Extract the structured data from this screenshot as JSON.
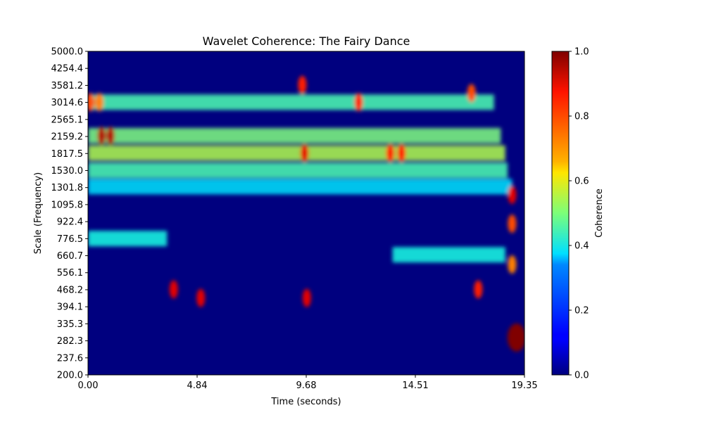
{
  "chart_data": {
    "type": "heatmap",
    "title": "Wavelet Coherence: The Fairy Dance",
    "xlabel": "Time (seconds)",
    "ylabel": "Scale (Frequency)",
    "xlim": [
      0.0,
      19.35
    ],
    "x_ticks": [
      "0.00",
      "4.84",
      "9.68",
      "14.51",
      "19.35"
    ],
    "y_ticks": [
      "200.0",
      "237.6",
      "282.3",
      "335.3",
      "394.1",
      "468.2",
      "556.1",
      "660.7",
      "776.5",
      "922.4",
      "1095.8",
      "1301.8",
      "1530.0",
      "1817.5",
      "2159.2",
      "2565.1",
      "3014.6",
      "3581.2",
      "4254.4",
      "5000.0"
    ],
    "ylim": [
      200.0,
      5000.0
    ],
    "y_scale": "log",
    "colorbar": {
      "label": "Coherence",
      "range": [
        0.0,
        1.0
      ],
      "ticks": [
        "0.0",
        "0.2",
        "0.4",
        "0.6",
        "0.8",
        "1.0"
      ],
      "colormap": "jet"
    },
    "background_value": 0.0,
    "bands": [
      {
        "scale": 3014.6,
        "t_start": 0.0,
        "t_end": 18.0,
        "coherence": 0.45
      },
      {
        "scale": 2159.2,
        "t_start": 0.0,
        "t_end": 18.3,
        "coherence": 0.5
      },
      {
        "scale": 1817.5,
        "t_start": 0.0,
        "t_end": 18.5,
        "coherence": 0.55
      },
      {
        "scale": 1530.0,
        "t_start": 0.0,
        "t_end": 18.6,
        "coherence": 0.45
      },
      {
        "scale": 1301.8,
        "t_start": 0.0,
        "t_end": 18.8,
        "coherence": 0.35
      },
      {
        "scale": 776.5,
        "t_start": 0.0,
        "t_end": 3.5,
        "coherence": 0.4
      },
      {
        "scale": 660.7,
        "t_start": 13.5,
        "t_end": 18.5,
        "coherence": 0.4
      }
    ],
    "hotspots": [
      {
        "t": 0.6,
        "scale": 2159.2,
        "coherence": 0.95
      },
      {
        "t": 1.0,
        "scale": 2159.2,
        "coherence": 0.95
      },
      {
        "t": 0.1,
        "scale": 3014.6,
        "coherence": 0.8
      },
      {
        "t": 0.5,
        "scale": 3014.6,
        "coherence": 0.75
      },
      {
        "t": 3.8,
        "scale": 468.2,
        "coherence": 0.9
      },
      {
        "t": 5.0,
        "scale": 430.0,
        "coherence": 0.9
      },
      {
        "t": 9.7,
        "scale": 430.0,
        "coherence": 0.9
      },
      {
        "t": 9.6,
        "scale": 1817.5,
        "coherence": 0.9
      },
      {
        "t": 9.5,
        "scale": 3581.2,
        "coherence": 0.85
      },
      {
        "t": 12.0,
        "scale": 3014.6,
        "coherence": 0.85
      },
      {
        "t": 13.4,
        "scale": 1817.5,
        "coherence": 0.85
      },
      {
        "t": 13.9,
        "scale": 1817.5,
        "coherence": 0.85
      },
      {
        "t": 17.0,
        "scale": 3300.0,
        "coherence": 0.8
      },
      {
        "t": 17.3,
        "scale": 468.2,
        "coherence": 0.85
      },
      {
        "t": 18.8,
        "scale": 1200.0,
        "coherence": 0.9
      },
      {
        "t": 18.8,
        "scale": 900.0,
        "coherence": 0.8
      },
      {
        "t": 18.8,
        "scale": 600.0,
        "coherence": 0.75
      },
      {
        "t": 19.0,
        "scale": 290.0,
        "coherence": 1.0
      }
    ]
  }
}
